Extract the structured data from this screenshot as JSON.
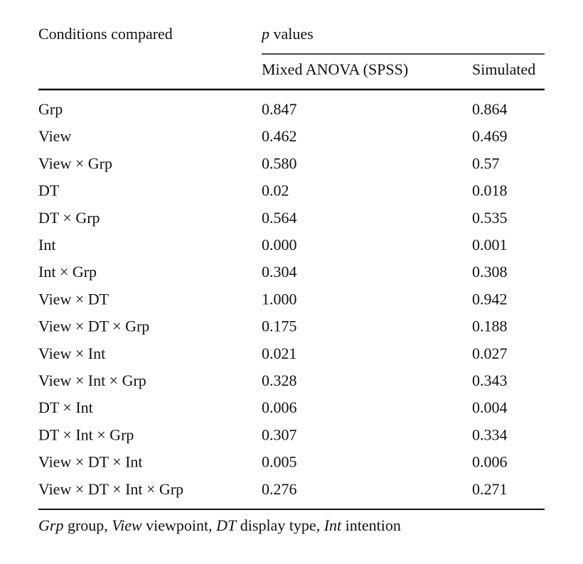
{
  "header": {
    "conditions": "Conditions compared",
    "group": [
      {
        "text": "p",
        "italic": true
      },
      {
        "text": " values",
        "italic": false
      }
    ],
    "columns": [
      "Mixed ANOVA (SPSS)",
      "Simulated"
    ]
  },
  "table": {
    "rows": [
      [
        "Grp",
        "0.847",
        "0.864"
      ],
      [
        "View",
        "0.462",
        "0.469"
      ],
      [
        "View × Grp",
        "0.580",
        "0.57"
      ],
      [
        "DT",
        "0.02",
        "0.018"
      ],
      [
        "DT × Grp",
        "0.564",
        "0.535"
      ],
      [
        "Int",
        "0.000",
        "0.001"
      ],
      [
        "Int × Grp",
        "0.304",
        "0.308"
      ],
      [
        "View × DT",
        "1.000",
        "0.942"
      ],
      [
        "View × DT × Grp",
        "0.175",
        "0.188"
      ],
      [
        "View × Int",
        "0.021",
        "0.027"
      ],
      [
        "View × Int × Grp",
        "0.328",
        "0.343"
      ],
      [
        "DT × Int",
        "0.006",
        "0.004"
      ],
      [
        "DT × Int × Grp",
        "0.307",
        "0.334"
      ],
      [
        "View × DT × Int",
        "0.005",
        "0.006"
      ],
      [
        "View × DT × Int × Grp",
        "0.276",
        "0.271"
      ]
    ]
  },
  "footnote": [
    {
      "text": "Grp",
      "italic": true
    },
    {
      "text": " group, ",
      "italic": false
    },
    {
      "text": "View",
      "italic": true
    },
    {
      "text": " viewpoint, ",
      "italic": false
    },
    {
      "text": "DT",
      "italic": true
    },
    {
      "text": " display type, ",
      "italic": false
    },
    {
      "text": "Int",
      "italic": true
    },
    {
      "text": " intention",
      "italic": false
    }
  ]
}
